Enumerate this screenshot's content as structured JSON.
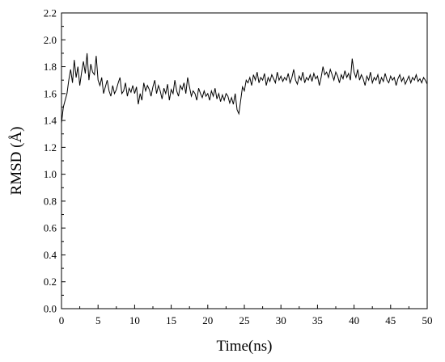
{
  "chart_data": {
    "type": "line",
    "title": "",
    "xlabel": "Time(ns)",
    "ylabel": "RMSD (Å)",
    "xlim": [
      0,
      50
    ],
    "ylim": [
      0,
      2.2
    ],
    "x_ticks": [
      "0",
      "5",
      "10",
      "15",
      "20",
      "25",
      "30",
      "35",
      "40",
      "45",
      "50"
    ],
    "y_ticks": [
      "0.0",
      "0.2",
      "0.4",
      "0.6",
      "0.8",
      "1.0",
      "1.2",
      "1.4",
      "1.6",
      "1.8",
      "2.0",
      "2.2"
    ],
    "grid": false,
    "legend": "none",
    "line_color": "#000000",
    "series": [
      {
        "x": [
          0,
          0.25,
          0.5,
          0.75,
          1,
          1.25,
          1.5,
          1.75,
          2,
          2.25,
          2.5,
          2.75,
          3,
          3.25,
          3.5,
          3.75,
          4,
          4.25,
          4.5,
          4.75,
          5,
          5.25,
          5.5,
          5.75,
          6,
          6.25,
          6.5,
          6.75,
          7,
          7.25,
          7.5,
          7.75,
          8,
          8.25,
          8.5,
          8.75,
          9,
          9.25,
          9.5,
          9.75,
          10,
          10.25,
          10.5,
          10.75,
          11,
          11.25,
          11.5,
          11.75,
          12,
          12.25,
          12.5,
          12.75,
          13,
          13.25,
          13.5,
          13.75,
          14,
          14.25,
          14.5,
          14.75,
          15,
          15.25,
          15.5,
          15.75,
          16,
          16.25,
          16.5,
          16.75,
          17,
          17.25,
          17.5,
          17.75,
          18,
          18.25,
          18.5,
          18.75,
          19,
          19.25,
          19.5,
          19.75,
          20,
          20.25,
          20.5,
          20.75,
          21,
          21.25,
          21.5,
          21.75,
          22,
          22.25,
          22.5,
          22.75,
          23,
          23.25,
          23.5,
          23.75,
          24,
          24.25,
          24.5,
          24.75,
          25,
          25.25,
          25.5,
          25.75,
          26,
          26.25,
          26.5,
          26.75,
          27,
          27.25,
          27.5,
          27.75,
          28,
          28.25,
          28.5,
          28.75,
          29,
          29.25,
          29.5,
          29.75,
          30,
          30.25,
          30.5,
          30.75,
          31,
          31.25,
          31.5,
          31.75,
          32,
          32.25,
          32.5,
          32.75,
          33,
          33.25,
          33.5,
          33.75,
          34,
          34.25,
          34.5,
          34.75,
          35,
          35.25,
          35.5,
          35.75,
          36,
          36.25,
          36.5,
          36.75,
          37,
          37.25,
          37.5,
          37.75,
          38,
          38.25,
          38.5,
          38.75,
          39,
          39.25,
          39.5,
          39.75,
          40,
          40.25,
          40.5,
          40.75,
          41,
          41.25,
          41.5,
          41.75,
          42,
          42.25,
          42.5,
          42.75,
          43,
          43.25,
          43.5,
          43.75,
          44,
          44.25,
          44.5,
          44.75,
          45,
          45.25,
          45.5,
          45.75,
          46,
          46.25,
          46.5,
          46.75,
          47,
          47.25,
          47.5,
          47.75,
          48,
          48.25,
          48.5,
          48.75,
          49,
          49.25,
          49.5,
          49.75,
          50
        ],
        "values": [
          1.38,
          1.5,
          1.55,
          1.6,
          1.7,
          1.78,
          1.68,
          1.85,
          1.72,
          1.8,
          1.66,
          1.76,
          1.84,
          1.75,
          1.9,
          1.7,
          1.82,
          1.76,
          1.74,
          1.88,
          1.7,
          1.66,
          1.72,
          1.6,
          1.65,
          1.7,
          1.62,
          1.58,
          1.66,
          1.6,
          1.63,
          1.68,
          1.72,
          1.6,
          1.62,
          1.68,
          1.58,
          1.64,
          1.61,
          1.66,
          1.6,
          1.65,
          1.52,
          1.6,
          1.55,
          1.68,
          1.62,
          1.66,
          1.63,
          1.58,
          1.65,
          1.7,
          1.6,
          1.66,
          1.62,
          1.56,
          1.64,
          1.6,
          1.67,
          1.55,
          1.63,
          1.6,
          1.7,
          1.62,
          1.58,
          1.66,
          1.63,
          1.68,
          1.6,
          1.72,
          1.65,
          1.58,
          1.62,
          1.6,
          1.55,
          1.64,
          1.6,
          1.57,
          1.62,
          1.58,
          1.6,
          1.55,
          1.62,
          1.58,
          1.64,
          1.56,
          1.6,
          1.54,
          1.59,
          1.55,
          1.6,
          1.58,
          1.53,
          1.57,
          1.52,
          1.6,
          1.48,
          1.45,
          1.55,
          1.65,
          1.62,
          1.7,
          1.68,
          1.72,
          1.66,
          1.74,
          1.7,
          1.76,
          1.68,
          1.72,
          1.7,
          1.75,
          1.66,
          1.72,
          1.69,
          1.74,
          1.71,
          1.68,
          1.76,
          1.7,
          1.73,
          1.69,
          1.72,
          1.7,
          1.75,
          1.68,
          1.72,
          1.78,
          1.7,
          1.67,
          1.73,
          1.7,
          1.76,
          1.68,
          1.72,
          1.7,
          1.74,
          1.69,
          1.75,
          1.71,
          1.73,
          1.66,
          1.72,
          1.8,
          1.74,
          1.76,
          1.72,
          1.78,
          1.74,
          1.7,
          1.76,
          1.73,
          1.68,
          1.74,
          1.71,
          1.77,
          1.72,
          1.75,
          1.7,
          1.86,
          1.76,
          1.72,
          1.78,
          1.7,
          1.74,
          1.71,
          1.66,
          1.73,
          1.7,
          1.76,
          1.68,
          1.72,
          1.7,
          1.74,
          1.67,
          1.72,
          1.69,
          1.75,
          1.7,
          1.68,
          1.73,
          1.7,
          1.72,
          1.66,
          1.71,
          1.74,
          1.69,
          1.72,
          1.67,
          1.7,
          1.73,
          1.68,
          1.72,
          1.7,
          1.74,
          1.69,
          1.71,
          1.68,
          1.72,
          1.7,
          1.67
        ]
      }
    ]
  }
}
